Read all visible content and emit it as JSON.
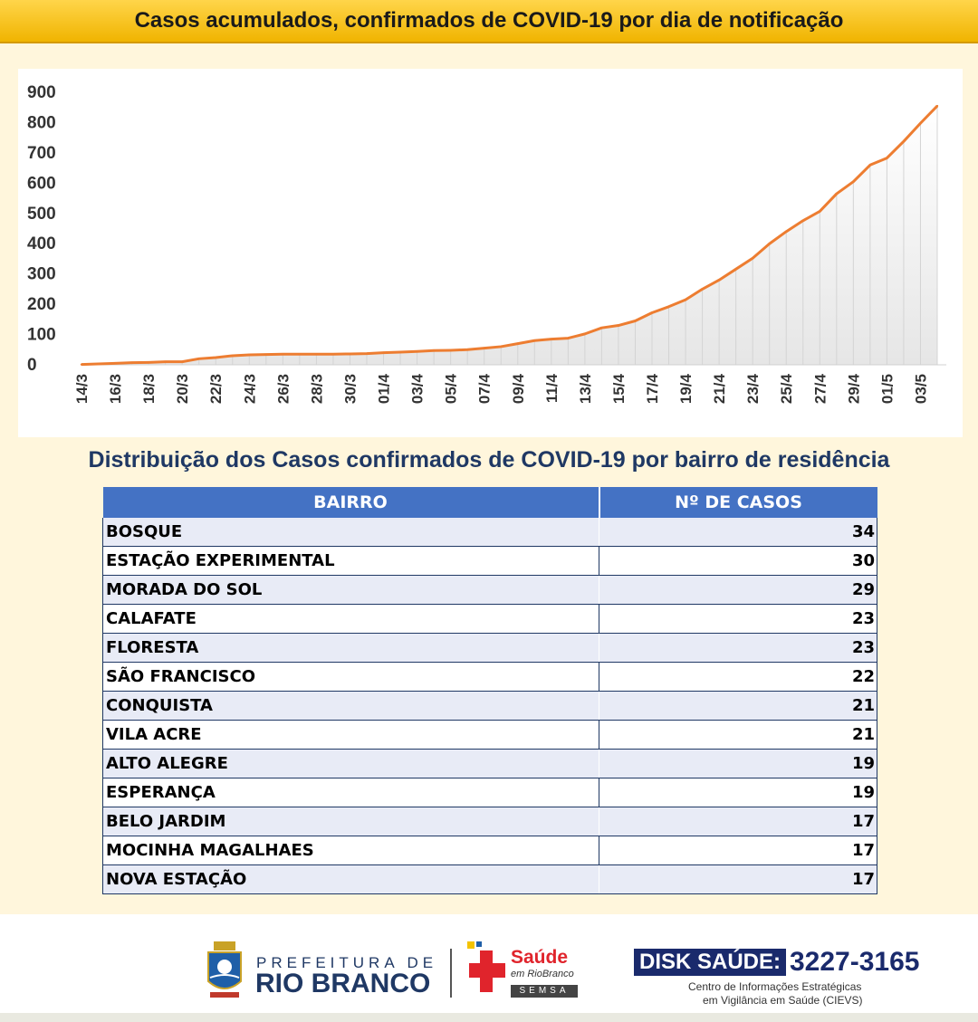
{
  "header": {
    "title": "Casos acumulados, confirmados de COVID-19 por dia de notificação"
  },
  "chart_data": {
    "type": "area",
    "title": "Casos acumulados, confirmados de COVID-19 por dia de notificação",
    "xlabel": "",
    "ylabel": "",
    "ylim": [
      0,
      900
    ],
    "yticks": [
      0,
      100,
      200,
      300,
      400,
      500,
      600,
      700,
      800,
      900
    ],
    "tick_labels": [
      "14/3",
      "16/3",
      "18/3",
      "20/3",
      "22/3",
      "24/3",
      "26/3",
      "28/3",
      "30/3",
      "01/4",
      "03/4",
      "05/4",
      "07/4",
      "09/4",
      "11/4",
      "13/4",
      "15/4",
      "17/4",
      "19/4",
      "21/4",
      "23/4",
      "25/4",
      "27/4",
      "29/4",
      "01/5",
      "03/5"
    ],
    "categories": [
      "14/3",
      "15/3",
      "16/3",
      "17/3",
      "18/3",
      "19/3",
      "20/3",
      "21/3",
      "22/3",
      "23/3",
      "24/3",
      "25/3",
      "26/3",
      "27/3",
      "28/3",
      "29/3",
      "30/3",
      "31/3",
      "01/4",
      "02/4",
      "03/4",
      "04/4",
      "05/4",
      "06/4",
      "07/4",
      "08/4",
      "09/4",
      "10/4",
      "11/4",
      "12/4",
      "13/4",
      "14/4",
      "15/4",
      "16/4",
      "17/4",
      "18/4",
      "19/4",
      "20/4",
      "21/4",
      "22/4",
      "23/4",
      "24/4",
      "25/4",
      "26/4",
      "27/4",
      "28/4",
      "29/4",
      "30/4",
      "01/5",
      "02/5",
      "03/5",
      "04/5"
    ],
    "series": [
      {
        "name": "",
        "color": "#ed7d31",
        "values": [
          1,
          3,
          5,
          7,
          8,
          10,
          10,
          20,
          24,
          30,
          33,
          34,
          35,
          35,
          35,
          35,
          36,
          37,
          40,
          42,
          44,
          47,
          48,
          50,
          55,
          60,
          70,
          80,
          85,
          88,
          102,
          122,
          130,
          145,
          172,
          192,
          215,
          250,
          280,
          316,
          352,
          400,
          440,
          476,
          507,
          565,
          605,
          660,
          683,
          738,
          798,
          855
        ]
      }
    ],
    "grid": false,
    "legend": "none"
  },
  "section2": {
    "title": "Distribuição dos Casos confirmados de COVID-19 por bairro de residência"
  },
  "table": {
    "headers": [
      "BAIRRO",
      "Nº DE CASOS"
    ],
    "rows": [
      {
        "bairro": "BOSQUE",
        "casos": "34"
      },
      {
        "bairro": "ESTAÇÃO EXPERIMENTAL",
        "casos": "30"
      },
      {
        "bairro": "MORADA DO SOL",
        "casos": "29"
      },
      {
        "bairro": "CALAFATE",
        "casos": "23"
      },
      {
        "bairro": "FLORESTA",
        "casos": "23"
      },
      {
        "bairro": "SÃO FRANCISCO",
        "casos": "22"
      },
      {
        "bairro": "CONQUISTA",
        "casos": "21"
      },
      {
        "bairro": "VILA ACRE",
        "casos": "21"
      },
      {
        "bairro": "ALTO ALEGRE",
        "casos": "19"
      },
      {
        "bairro": "ESPERANÇA",
        "casos": "19"
      },
      {
        "bairro": "BELO JARDIM",
        "casos": "17"
      },
      {
        "bairro": "MOCINHA MAGALHAES",
        "casos": "17"
      },
      {
        "bairro": "NOVA ESTAÇÃO",
        "casos": "17"
      }
    ]
  },
  "footer": {
    "prefeitura_line1": "PREFEITURA DE",
    "prefeitura_line2": "RIO BRANCO",
    "saude_title": "Saúde",
    "saude_sub": "em RioBranco",
    "saude_semsa": "SEMSA",
    "disk_label": "DISK SAÚDE:",
    "disk_number": "3227-3165",
    "cievs_line1": "Centro de Informações Estratégicas",
    "cievs_line2": "em Vigilância em Saúde (CIEVS)",
    "accent_orange": "#ed7d31",
    "header_blue": "#4472c4"
  }
}
